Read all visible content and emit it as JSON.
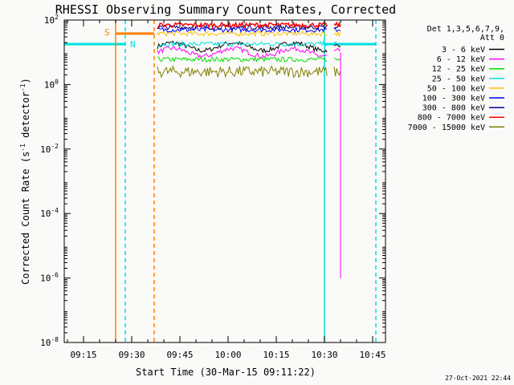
{
  "chart_data": {
    "type": "line",
    "title": "RHESSI Observing Summary Count Rates, Corrected",
    "xlabel": "Start Time (30-Mar-15 09:11:22)",
    "ylabel_main": "Corrected Count Rate (s",
    "ylabel_sup1": "-1",
    "ylabel_mid": " detector",
    "ylabel_sup2": "-1",
    "ylabel_end": ")",
    "y_scale": "log",
    "ylim": [
      1e-08,
      100
    ],
    "xlim": [
      "09:09:00",
      "10:49:00"
    ],
    "x_ticks": [
      "09:15",
      "09:30",
      "09:45",
      "10:00",
      "10:15",
      "10:30",
      "10:45"
    ],
    "y_ticks": [
      {
        "value": 100,
        "base": "10",
        "exp": "2"
      },
      {
        "value": 1,
        "base": "10",
        "exp": "0"
      },
      {
        "value": 0.01,
        "base": "10",
        "exp": "-2"
      },
      {
        "value": 0.0001,
        "base": "10",
        "exp": "-4"
      },
      {
        "value": 1e-06,
        "base": "10",
        "exp": "-6"
      },
      {
        "value": 1e-08,
        "base": "10",
        "exp": "-8"
      }
    ],
    "legend_title_1": "Det 1,3,5,6,7,9,",
    "legend_title_2": "Att 0",
    "legend_position": "right",
    "series": [
      {
        "name": "3 - 6 keV",
        "color": "#000000",
        "level": 15
      },
      {
        "name": "6 - 12 keV",
        "color": "#ff00ff",
        "level": 10
      },
      {
        "name": "12 - 25 keV",
        "color": "#00e000",
        "level": 6
      },
      {
        "name": "25 - 50 keV",
        "color": "#00e0e0",
        "level": 18
      },
      {
        "name": "50 - 100 keV",
        "color": "#ffc000",
        "level": 38
      },
      {
        "name": "100 - 300 keV",
        "color": "#0000ff",
        "level": 50
      },
      {
        "name": "300 - 800 keV",
        "color": "#000090",
        "level": 60
      },
      {
        "name": "800 - 7000 keV",
        "color": "#ff0000",
        "level": 70
      },
      {
        "name": "7000 - 15000 keV",
        "color": "#808000",
        "level": 2.5
      }
    ],
    "data_gaps": [
      [
        "09:25",
        "09:38"
      ],
      [
        "10:31",
        "10:33"
      ]
    ],
    "saa": {
      "label": "S",
      "color": "#ff8000",
      "start": "09:25",
      "end": "09:37"
    },
    "night": {
      "label": "N",
      "color": "#00e0e0",
      "intervals": [
        [
          "09:09",
          "09:28"
        ],
        [
          "10:30",
          "10:46"
        ]
      ]
    },
    "timestamp": "27-Oct-2021 22:44"
  }
}
